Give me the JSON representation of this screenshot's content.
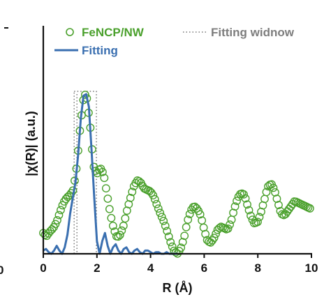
{
  "chart_data": {
    "type": "line",
    "xlabel": "R (Å)",
    "ylabel": "|χ(R)| (a.u.)",
    "xlim": [
      0,
      10
    ],
    "ylim": [
      0,
      1
    ],
    "x_ticks": [
      "0",
      "2",
      "4",
      "6",
      "8",
      "10"
    ],
    "left_cut_tick": "0",
    "grid": false,
    "legend": {
      "placement": "top",
      "entries": [
        "FeNCP/NW",
        "Fitting",
        "Fitting widnow"
      ]
    },
    "fitting_window": [
      1.15,
      1.98
    ],
    "series": [
      {
        "name": "FeNCP/NW",
        "marker": "open-circle",
        "color": "#4aa02c",
        "x": [
          0.0,
          0.12,
          0.25,
          0.37,
          0.5,
          0.62,
          0.75,
          0.87,
          1.0,
          1.12,
          1.25,
          1.37,
          1.5,
          1.57,
          1.62,
          1.75,
          1.87,
          2.0,
          2.12,
          2.25,
          2.37,
          2.5,
          2.62,
          2.75,
          2.87,
          3.0,
          3.12,
          3.25,
          3.37,
          3.5,
          3.62,
          3.75,
          3.87,
          4.0,
          4.12,
          4.25,
          4.37,
          4.5,
          4.62,
          4.75,
          4.87,
          5.0,
          5.12,
          5.25,
          5.37,
          5.5,
          5.62,
          5.75,
          5.87,
          6.0,
          6.12,
          6.25,
          6.37,
          6.5,
          6.62,
          6.75,
          6.87,
          7.0,
          7.12,
          7.25,
          7.37,
          7.5,
          7.62,
          7.75,
          7.87,
          8.0,
          8.12,
          8.25,
          8.37,
          8.5,
          8.62,
          8.75,
          8.87,
          9.0,
          9.12,
          9.25,
          9.37,
          9.5,
          9.62,
          9.75,
          9.87,
          10.0
        ],
        "y": [
          0.13,
          0.11,
          0.14,
          0.16,
          0.2,
          0.26,
          0.32,
          0.35,
          0.37,
          0.4,
          0.55,
          0.78,
          0.97,
          1.0,
          0.98,
          0.8,
          0.55,
          0.5,
          0.54,
          0.5,
          0.38,
          0.25,
          0.16,
          0.1,
          0.12,
          0.18,
          0.27,
          0.35,
          0.42,
          0.46,
          0.45,
          0.41,
          0.4,
          0.39,
          0.36,
          0.3,
          0.25,
          0.2,
          0.14,
          0.07,
          0.02,
          0.0,
          0.03,
          0.1,
          0.2,
          0.27,
          0.3,
          0.28,
          0.24,
          0.15,
          0.08,
          0.07,
          0.1,
          0.15,
          0.17,
          0.16,
          0.15,
          0.2,
          0.28,
          0.35,
          0.38,
          0.37,
          0.3,
          0.23,
          0.19,
          0.2,
          0.26,
          0.34,
          0.42,
          0.44,
          0.4,
          0.32,
          0.25,
          0.24,
          0.27,
          0.3,
          0.33,
          0.32,
          0.31,
          0.3,
          0.29,
          0.28
        ]
      },
      {
        "name": "Fitting",
        "marker": "line",
        "color": "#3a6fb0",
        "x": [
          0.0,
          0.1,
          0.2,
          0.3,
          0.4,
          0.5,
          0.6,
          0.7,
          0.8,
          0.9,
          1.0,
          1.1,
          1.2,
          1.3,
          1.4,
          1.5,
          1.6,
          1.7,
          1.8,
          1.9,
          2.0,
          2.1,
          2.2,
          2.3,
          2.4,
          2.5,
          2.6,
          2.7,
          2.8,
          2.9,
          3.0,
          3.1,
          3.2,
          3.3,
          3.4,
          3.5,
          3.6,
          3.7,
          3.8,
          3.9,
          4.0,
          4.1,
          4.2,
          4.3,
          4.4,
          4.5,
          4.6,
          4.7,
          4.8,
          4.9,
          5.0
        ],
        "y": [
          0.02,
          0.03,
          0.01,
          0.0,
          0.02,
          0.05,
          0.02,
          0.0,
          0.04,
          0.12,
          0.25,
          0.35,
          0.45,
          0.62,
          0.85,
          0.99,
          1.0,
          0.92,
          0.65,
          0.35,
          0.08,
          0.0,
          0.08,
          0.13,
          0.05,
          0.0,
          0.04,
          0.06,
          0.02,
          0.0,
          0.03,
          0.04,
          0.01,
          0.0,
          0.02,
          0.03,
          0.01,
          0.0,
          0.02,
          0.02,
          0.01,
          0.0,
          0.01,
          0.01,
          0.0,
          0.0,
          0.01,
          0.0,
          0.0,
          0.0,
          0.0
        ]
      }
    ]
  }
}
